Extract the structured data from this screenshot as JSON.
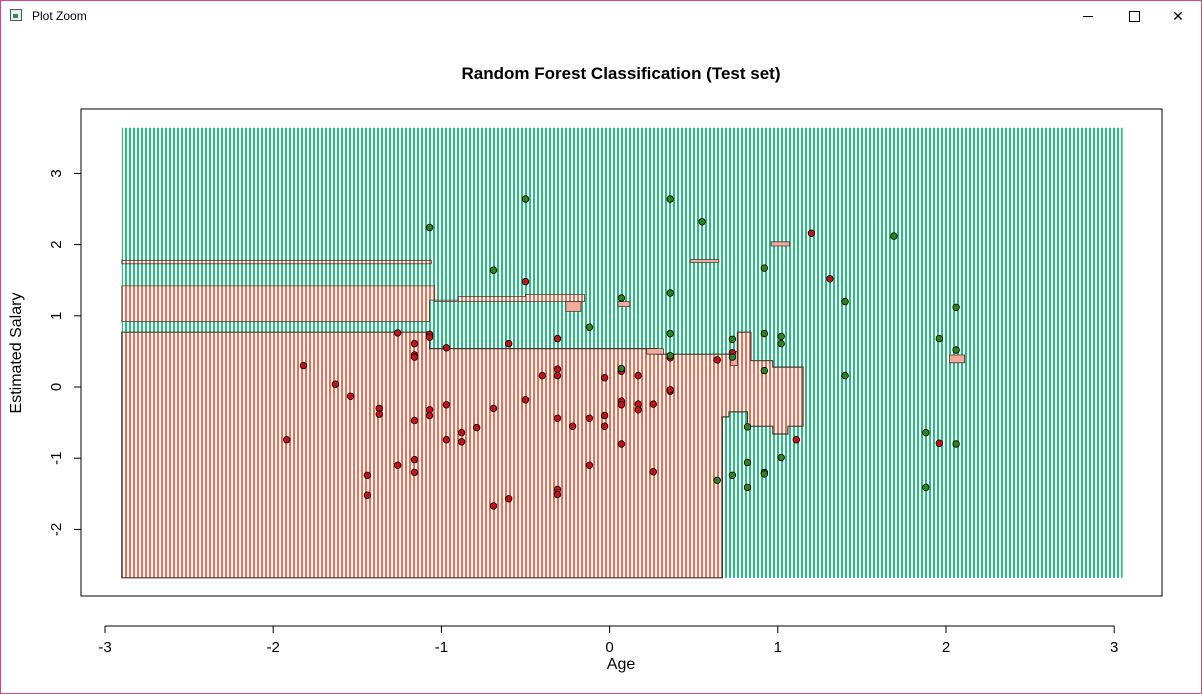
{
  "window": {
    "title": "Plot Zoom",
    "app_icon": "plot-window-icon",
    "minimize_icon": "minimize-icon",
    "maximize_icon": "maximize-icon",
    "close_icon": "close-icon"
  },
  "chart_data": {
    "type": "scatter",
    "title": "Random Forest Classification (Test set)",
    "xlabel": "Age",
    "ylabel": "Estimated Salary",
    "xlim": [
      -3.0,
      3.2
    ],
    "ylim": [
      -2.9,
      3.9
    ],
    "xticks": [
      -3,
      -2,
      -1,
      0,
      1,
      2,
      3
    ],
    "yticks": [
      -2,
      -1,
      0,
      1,
      2,
      3
    ],
    "grid": false,
    "colors": {
      "region_class0": "#f26b4f",
      "region_class1": "#22bf7d",
      "region_stripe_bg": "#ffffff",
      "island_class0": "#f4a99a",
      "point_class0": "#c3121a",
      "point_class1": "#26861f",
      "boundary": "#3a3a3a"
    },
    "region_grid": {
      "x_range": [
        -2.9,
        3.05
      ],
      "y_range": [
        -2.68,
        3.64
      ]
    },
    "decision_regions": [
      {
        "class": 0,
        "polygon": [
          [
            -2.9,
            -2.68
          ],
          [
            0.67,
            -2.68
          ],
          [
            0.67,
            -0.42
          ],
          [
            0.71,
            -0.42
          ],
          [
            0.71,
            -0.35
          ],
          [
            0.82,
            -0.35
          ],
          [
            0.82,
            -0.55
          ],
          [
            0.97,
            -0.55
          ],
          [
            0.97,
            -0.66
          ],
          [
            1.06,
            -0.66
          ],
          [
            1.06,
            -0.55
          ],
          [
            1.15,
            -0.55
          ],
          [
            1.15,
            0.28
          ],
          [
            0.97,
            0.28
          ],
          [
            0.97,
            0.37
          ],
          [
            0.84,
            0.37
          ],
          [
            0.84,
            0.77
          ],
          [
            0.76,
            0.77
          ],
          [
            0.76,
            0.46
          ],
          [
            0.28,
            0.46
          ],
          [
            0.28,
            0.54
          ],
          [
            -1.07,
            0.54
          ],
          [
            -1.07,
            0.77
          ],
          [
            -2.9,
            0.77
          ]
        ]
      },
      {
        "class": 0,
        "polygon": [
          [
            -2.9,
            0.92
          ],
          [
            -1.07,
            0.92
          ],
          [
            -1.07,
            1.22
          ],
          [
            -0.9,
            1.22
          ],
          [
            -0.9,
            1.27
          ],
          [
            -0.5,
            1.27
          ],
          [
            -0.5,
            1.3
          ],
          [
            -0.15,
            1.3
          ],
          [
            -0.15,
            1.2
          ],
          [
            -1.04,
            1.2
          ],
          [
            -1.04,
            1.42
          ],
          [
            -2.9,
            1.42
          ]
        ]
      },
      {
        "class": 0,
        "polygon": [
          [
            -2.9,
            1.73
          ],
          [
            -1.06,
            1.73
          ],
          [
            -1.06,
            1.78
          ],
          [
            -2.9,
            1.78
          ]
        ]
      },
      {
        "class": 0,
        "polygon": [
          [
            0.05,
            1.13
          ],
          [
            0.12,
            1.13
          ],
          [
            0.12,
            1.2
          ],
          [
            0.05,
            1.2
          ]
        ]
      },
      {
        "class": 0,
        "polygon": [
          [
            -0.26,
            1.06
          ],
          [
            -0.17,
            1.06
          ],
          [
            -0.17,
            1.2
          ],
          [
            -0.26,
            1.2
          ]
        ]
      },
      {
        "class": 0,
        "polygon": [
          [
            0.48,
            1.75
          ],
          [
            0.65,
            1.75
          ],
          [
            0.65,
            1.79
          ],
          [
            0.48,
            1.79
          ]
        ]
      },
      {
        "class": 0,
        "polygon": [
          [
            0.96,
            1.98
          ],
          [
            1.07,
            1.98
          ],
          [
            1.07,
            2.04
          ],
          [
            0.96,
            2.04
          ]
        ]
      },
      {
        "class": 0,
        "polygon": [
          [
            2.02,
            0.34
          ],
          [
            2.11,
            0.34
          ],
          [
            2.11,
            0.45
          ],
          [
            2.02,
            0.45
          ]
        ]
      },
      {
        "class": 0,
        "polygon": [
          [
            0.22,
            0.46
          ],
          [
            0.32,
            0.46
          ],
          [
            0.32,
            0.54
          ],
          [
            0.22,
            0.54
          ]
        ]
      },
      {
        "class": 0,
        "polygon": [
          [
            0.72,
            0.3
          ],
          [
            0.76,
            0.3
          ],
          [
            0.76,
            0.5
          ],
          [
            0.72,
            0.5
          ]
        ]
      }
    ],
    "series": [
      {
        "name": "0",
        "points": [
          [
            -1.92,
            -0.74
          ],
          [
            -1.82,
            0.3
          ],
          [
            -1.63,
            0.04
          ],
          [
            -1.54,
            -0.13
          ],
          [
            -1.44,
            -1.24
          ],
          [
            -1.44,
            -1.52
          ],
          [
            -1.37,
            -0.3
          ],
          [
            -1.37,
            -0.38
          ],
          [
            -1.26,
            0.76
          ],
          [
            -1.26,
            -1.1
          ],
          [
            -1.16,
            0.61
          ],
          [
            -1.16,
            0.45
          ],
          [
            -1.16,
            0.42
          ],
          [
            -1.16,
            -0.47
          ],
          [
            -1.16,
            -1.02
          ],
          [
            -1.16,
            -1.2
          ],
          [
            -1.07,
            0.74
          ],
          [
            -1.07,
            0.7
          ],
          [
            -1.07,
            -0.32
          ],
          [
            -1.07,
            -0.4
          ],
          [
            -0.97,
            0.55
          ],
          [
            -0.97,
            -0.25
          ],
          [
            -0.97,
            -0.74
          ],
          [
            -0.88,
            -0.64
          ],
          [
            -0.88,
            -0.77
          ],
          [
            -0.79,
            -0.57
          ],
          [
            -0.69,
            -0.3
          ],
          [
            -0.69,
            -1.67
          ],
          [
            -0.5,
            1.48
          ],
          [
            -0.5,
            -0.18
          ],
          [
            -0.6,
            0.61
          ],
          [
            -0.6,
            -1.57
          ],
          [
            -0.4,
            0.16
          ],
          [
            -0.31,
            0.68
          ],
          [
            -0.31,
            0.25
          ],
          [
            -0.31,
            0.16
          ],
          [
            -0.31,
            -0.44
          ],
          [
            -0.31,
            -1.44
          ],
          [
            -0.31,
            -1.51
          ],
          [
            -0.22,
            -0.55
          ],
          [
            -0.12,
            -0.44
          ],
          [
            -0.12,
            -1.1
          ],
          [
            -0.03,
            0.13
          ],
          [
            -0.03,
            -0.4
          ],
          [
            -0.03,
            -0.55
          ],
          [
            0.07,
            0.22
          ],
          [
            0.07,
            -0.2
          ],
          [
            0.07,
            -0.25
          ],
          [
            0.07,
            -0.8
          ],
          [
            0.17,
            0.16
          ],
          [
            0.17,
            -0.24
          ],
          [
            0.17,
            -0.32
          ],
          [
            0.26,
            -0.24
          ],
          [
            0.26,
            -1.19
          ],
          [
            0.36,
            0.41
          ],
          [
            0.36,
            -0.06
          ],
          [
            0.36,
            -0.04
          ],
          [
            0.64,
            0.38
          ],
          [
            0.73,
            0.48
          ],
          [
            1.2,
            2.16
          ],
          [
            1.31,
            1.52
          ],
          [
            1.11,
            -0.74
          ],
          [
            1.96,
            -0.79
          ]
        ]
      },
      {
        "name": "1",
        "points": [
          [
            -1.07,
            2.24
          ],
          [
            -0.69,
            1.64
          ],
          [
            -0.5,
            2.64
          ],
          [
            -0.12,
            0.84
          ],
          [
            0.07,
            1.25
          ],
          [
            0.07,
            0.26
          ],
          [
            0.36,
            2.64
          ],
          [
            0.36,
            1.32
          ],
          [
            0.36,
            0.75
          ],
          [
            0.36,
            0.44
          ],
          [
            0.55,
            2.32
          ],
          [
            0.64,
            -1.31
          ],
          [
            0.73,
            0.67
          ],
          [
            0.73,
            0.42
          ],
          [
            0.73,
            -1.24
          ],
          [
            0.82,
            -0.56
          ],
          [
            0.82,
            -1.06
          ],
          [
            0.82,
            -1.41
          ],
          [
            0.92,
            1.67
          ],
          [
            0.92,
            0.75
          ],
          [
            0.92,
            0.23
          ],
          [
            0.92,
            -1.2
          ],
          [
            0.92,
            -1.22
          ],
          [
            1.02,
            0.71
          ],
          [
            1.02,
            0.61
          ],
          [
            1.02,
            -0.99
          ],
          [
            1.4,
            1.2
          ],
          [
            1.4,
            0.16
          ],
          [
            1.69,
            2.12
          ],
          [
            1.88,
            -0.64
          ],
          [
            1.88,
            -1.41
          ],
          [
            1.96,
            0.68
          ],
          [
            2.06,
            1.12
          ],
          [
            2.06,
            0.52
          ],
          [
            2.06,
            -0.8
          ]
        ]
      }
    ]
  }
}
